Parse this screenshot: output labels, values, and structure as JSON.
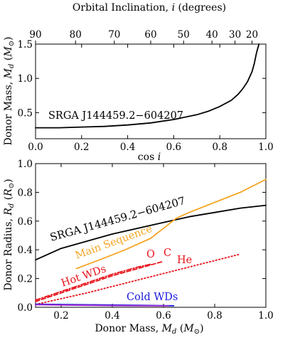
{
  "chart_data": [
    {
      "type": "line",
      "xlabel": "cos i",
      "ylabel": "Donor Mass, M_d (M_⊙)",
      "top_axis_label": "Orbital Inclination, i (degrees)",
      "top_axis_ticks": [
        "90",
        "80",
        "70",
        "60",
        "50",
        "40",
        "30",
        "20"
      ],
      "xlim": [
        0.0,
        1.0
      ],
      "ylim": [
        0.12,
        1.5
      ],
      "x_ticks": [
        "0.0",
        "0.2",
        "0.4",
        "0.6",
        "0.8",
        "1.0"
      ],
      "y_ticks": [
        "0.5",
        "1.0",
        "1.5"
      ],
      "grid": false,
      "series": [
        {
          "name": "SRGA J144459.2−604207",
          "color": "#000000",
          "x": [
            0.0,
            0.1,
            0.2,
            0.3,
            0.4,
            0.5,
            0.6,
            0.7,
            0.75,
            0.8,
            0.85,
            0.88,
            0.9,
            0.92,
            0.94,
            0.95,
            0.96,
            0.97
          ],
          "y": [
            0.28,
            0.28,
            0.29,
            0.3,
            0.32,
            0.35,
            0.4,
            0.47,
            0.52,
            0.59,
            0.68,
            0.77,
            0.85,
            0.95,
            1.1,
            1.22,
            1.38,
            1.5
          ]
        }
      ],
      "annotations": [
        {
          "text": "SRGA J144459.2−604207",
          "color": "#000000"
        }
      ]
    },
    {
      "type": "line",
      "xlabel": "Donor Mass, M_d (M_⊙)",
      "ylabel": "Donor Radius, R_d (R_⊙)",
      "xlim": [
        0.1,
        1.0
      ],
      "ylim": [
        0.0,
        1.0
      ],
      "x_ticks": [
        "0.2",
        "0.4",
        "0.6",
        "0.8",
        "1.0"
      ],
      "y_ticks": [
        "0.0",
        "0.2",
        "0.4",
        "0.6",
        "0.8",
        "1.0"
      ],
      "grid": false,
      "series": [
        {
          "name": "SRGA J144459.2−604207",
          "color": "#000000",
          "x": [
            0.1,
            0.2,
            0.3,
            0.4,
            0.5,
            0.6,
            0.7,
            0.8,
            0.9,
            1.0
          ],
          "y": [
            0.33,
            0.41,
            0.46,
            0.51,
            0.55,
            0.59,
            0.63,
            0.66,
            0.69,
            0.71
          ]
        },
        {
          "name": "Main Sequence",
          "color": "#f5a623",
          "x": [
            0.26,
            0.35,
            0.45,
            0.55,
            0.6,
            0.65,
            0.7,
            0.8,
            0.9,
            1.0
          ],
          "y": [
            0.27,
            0.33,
            0.4,
            0.48,
            0.55,
            0.62,
            0.66,
            0.73,
            0.8,
            0.89
          ]
        },
        {
          "name": "He",
          "color": "#e8141c",
          "style": "dotted",
          "x": [
            0.1,
            0.3,
            0.5,
            0.7,
            0.9
          ],
          "y": [
            0.02,
            0.1,
            0.19,
            0.28,
            0.37
          ]
        },
        {
          "name": "C",
          "color": "#e8141c",
          "style": "dashed",
          "x": [
            0.1,
            0.2,
            0.3,
            0.4,
            0.5,
            0.6
          ],
          "y": [
            0.04,
            0.1,
            0.16,
            0.22,
            0.27,
            0.32
          ]
        },
        {
          "name": "O",
          "color": "#e8141c",
          "style": "dashdot",
          "x": [
            0.1,
            0.2,
            0.3,
            0.4,
            0.5,
            0.55
          ],
          "y": [
            0.05,
            0.11,
            0.17,
            0.23,
            0.28,
            0.3
          ]
        },
        {
          "name": "Cold WDs",
          "color": "#1a1adb",
          "x": [
            0.1,
            0.2,
            0.3,
            0.4,
            0.5,
            0.6,
            0.64
          ],
          "y": [
            0.022,
            0.02,
            0.018,
            0.016,
            0.014,
            0.012,
            0.011
          ]
        },
        {
          "name": "Cold WDs (purple)",
          "color": "#a02bd0",
          "x": [
            0.1,
            0.2,
            0.3,
            0.4,
            0.5,
            0.6,
            0.62
          ],
          "y": [
            0.018,
            0.016,
            0.014,
            0.012,
            0.011,
            0.01,
            0.01
          ]
        }
      ],
      "annotations": [
        {
          "text": "SRGA J144459.2−604207",
          "color": "#000000"
        },
        {
          "text": "Main Sequence",
          "color": "#f5a623"
        },
        {
          "text": "O",
          "color": "#e8141c"
        },
        {
          "text": "C",
          "color": "#e8141c"
        },
        {
          "text": "He",
          "color": "#e8141c"
        },
        {
          "text": "Hot WDs",
          "color": "#e8141c"
        },
        {
          "text": "Cold WDs",
          "color": "#1a1adb"
        }
      ]
    }
  ]
}
